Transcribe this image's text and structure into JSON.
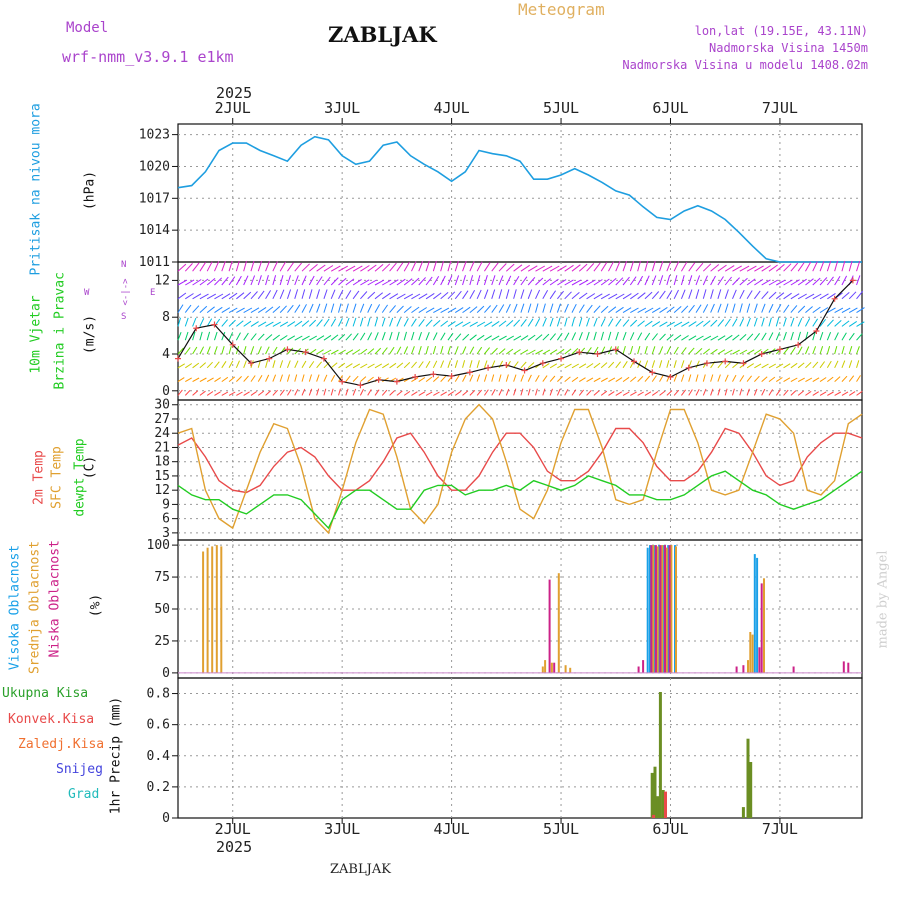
{
  "header": {
    "model_label": "Model",
    "model_name": "wrf-nmm_v3.9.1 e1km",
    "station": "ZABLJAK",
    "meteogram": "Meteogram",
    "location": "lon,lat (19.15E, 43.11N)",
    "altitude": "Nadmorska Visina 1450m",
    "model_altitude": "Nadmorska Visina u modelu 1408.02m",
    "year_top": "2025",
    "year_bottom": "2025",
    "footer_station": "ZABLJAK",
    "credit": "made by Angel"
  },
  "colors": {
    "pressure": "#1e9ee0",
    "temp2m": "#e84a4a",
    "sfc": "#e0a030",
    "dewpt": "#22cc22",
    "high_cloud": "#18a0e8",
    "mid_cloud": "#e0a030",
    "low_cloud": "#cc2288",
    "total_precip": "#2aa02a",
    "conv_precip": "#e84a4a",
    "frozen": "#f07030",
    "snow": "#4444dd",
    "hail": "#22bbbb",
    "precip_bar": "#6b8e23",
    "wind_title": "#22cc22",
    "compass": "#aa44cc",
    "header_purple": "#aa44cc",
    "header_orange": "#e0b060"
  },
  "panels": {
    "pressure": {
      "label": "Pritisak na nivou mora",
      "unit": "(hPa)",
      "ticks": [
        "1023",
        "1020",
        "1017",
        "1014",
        "1011"
      ]
    },
    "wind": {
      "label1": "10m Vjetar",
      "label2": "Brzina i Pravac",
      "unit": "(m/s)",
      "ticks": [
        "12",
        "8",
        "4",
        "0"
      ],
      "compass_w": "W",
      "compass_e": "E",
      "compass_n": "N",
      "compass_s": "S",
      "compass_arrow": "<-|->"
    },
    "temperature": {
      "label1": "2m Temp",
      "label2": "SFC Temp",
      "label3": "dewpt Temp",
      "unit": "(C)",
      "ticks": [
        "30",
        "27",
        "24",
        "21",
        "18",
        "15",
        "12",
        "9",
        "6",
        "3"
      ]
    },
    "clouds": {
      "label1": "Visoka Oblacnost",
      "label2": "Srednja Oblacnost",
      "label3": "Niska Oblacnost",
      "unit": "(%)",
      "ticks": [
        "100",
        "75",
        "50",
        "25",
        "0"
      ]
    },
    "precip": {
      "legend": [
        "Ukupna Kisa",
        "Konvek.Kisa",
        "Zaledj.Kisa",
        "Snijeg",
        "Grad"
      ],
      "unit": "1hr Precip (mm)",
      "ticks": [
        "0.8",
        "0.6",
        "0.4",
        "0.2",
        "0"
      ]
    }
  },
  "days": [
    "2JUL",
    "3JUL",
    "4JUL",
    "5JUL",
    "6JUL",
    "7JUL"
  ],
  "chart_data": [
    {
      "type": "line",
      "title": "Pritisak na nivou mora",
      "ylabel": "(hPa)",
      "ylim": [
        1011,
        1024
      ],
      "x_unit": "hours from 1 JUL 12UTC",
      "series": [
        {
          "name": "Pritisak na nivou mora",
          "x": [
            0,
            3,
            6,
            9,
            12,
            15,
            18,
            21,
            24,
            27,
            30,
            33,
            36,
            39,
            42,
            45,
            48,
            51,
            54,
            57,
            60,
            63,
            66,
            69,
            72,
            75,
            78,
            81,
            84,
            87,
            90,
            93,
            96,
            99,
            102,
            105,
            108,
            111,
            114,
            117,
            120,
            123,
            126,
            129,
            132,
            135,
            138,
            141,
            144,
            147,
            150
          ],
          "values": [
            1018.0,
            1018.2,
            1019.5,
            1021.5,
            1022.2,
            1022.2,
            1021.5,
            1021.0,
            1020.5,
            1022.0,
            1022.8,
            1022.5,
            1021.0,
            1020.2,
            1020.5,
            1022.0,
            1022.3,
            1021.0,
            1020.2,
            1019.5,
            1018.6,
            1019.5,
            1021.5,
            1021.2,
            1021.0,
            1020.5,
            1018.8,
            1018.8,
            1019.2,
            1019.8,
            1019.2,
            1018.5,
            1017.7,
            1017.3,
            1016.2,
            1015.2,
            1015.0,
            1015.8,
            1016.3,
            1015.8,
            1015.0,
            1013.8,
            1012.5,
            1011.3,
            1011.0,
            1011.0,
            1011.0,
            1011.0,
            1011.0,
            1011.0,
            1011.0
          ]
        }
      ]
    },
    {
      "type": "line",
      "title": "10m Vjetar Brzina i Pravac",
      "ylabel": "(m/s)",
      "ylim": [
        -1,
        14
      ],
      "series": [
        {
          "name": "10m Vjetar",
          "x": [
            0,
            4,
            8,
            12,
            16,
            20,
            24,
            28,
            32,
            36,
            40,
            44,
            48,
            52,
            56,
            60,
            64,
            68,
            72,
            76,
            80,
            84,
            88,
            92,
            96,
            100,
            104,
            108,
            112,
            116,
            120,
            124,
            128,
            132,
            136,
            140,
            144,
            148
          ],
          "values": [
            3.5,
            6.8,
            7.2,
            5.0,
            3.0,
            3.5,
            4.5,
            4.2,
            3.5,
            1.0,
            0.6,
            1.2,
            1.0,
            1.5,
            1.8,
            1.6,
            2.0,
            2.5,
            2.8,
            2.2,
            3.0,
            3.5,
            4.2,
            4.0,
            4.5,
            3.2,
            2.0,
            1.5,
            2.5,
            3.0,
            3.2,
            3.0,
            4.0,
            4.5,
            5.0,
            6.5,
            10.0,
            12.0
          ]
        }
      ]
    },
    {
      "type": "line",
      "title": "2m Temp / SFC Temp / dewpt Temp",
      "ylabel": "(C)",
      "ylim": [
        1.5,
        31
      ],
      "series": [
        {
          "name": "2m Temp",
          "x": [
            0,
            3,
            6,
            9,
            12,
            15,
            18,
            21,
            24,
            27,
            30,
            33,
            36,
            39,
            42,
            45,
            48,
            51,
            54,
            57,
            60,
            63,
            66,
            69,
            72,
            75,
            78,
            81,
            84,
            87,
            90,
            93,
            96,
            99,
            102,
            105,
            108,
            111,
            114,
            117,
            120,
            123,
            126,
            129,
            132,
            135,
            138,
            141,
            144,
            147,
            150
          ],
          "values": [
            21.5,
            23,
            19,
            14,
            12,
            11.5,
            13,
            17,
            20,
            21,
            19,
            15,
            12,
            12,
            14,
            18,
            23,
            24,
            20,
            15,
            12,
            12,
            15,
            20,
            24,
            24,
            21,
            16,
            14,
            14,
            16,
            20,
            25,
            25,
            22,
            17,
            14,
            14,
            16,
            20,
            25,
            24,
            20,
            15,
            13,
            14,
            19,
            22,
            24,
            24,
            23
          ]
        },
        {
          "name": "SFC Temp",
          "x": [
            0,
            3,
            6,
            9,
            12,
            15,
            18,
            21,
            24,
            27,
            30,
            33,
            36,
            39,
            42,
            45,
            48,
            51,
            54,
            57,
            60,
            63,
            66,
            69,
            72,
            75,
            78,
            81,
            84,
            87,
            90,
            93,
            96,
            99,
            102,
            105,
            108,
            111,
            114,
            117,
            120,
            123,
            126,
            129,
            132,
            135,
            138,
            141,
            144,
            147,
            150
          ],
          "values": [
            24,
            25,
            12,
            6,
            4,
            12,
            20,
            26,
            25,
            17,
            6,
            3,
            12,
            22,
            29,
            28,
            19,
            8,
            5,
            9,
            20,
            27,
            30,
            27,
            18,
            8,
            6,
            12,
            22,
            29,
            29,
            21,
            10,
            9,
            10,
            20,
            29,
            29,
            22,
            12,
            11,
            12,
            20,
            28,
            27,
            24,
            12,
            11,
            14,
            26,
            28
          ]
        },
        {
          "name": "dewpt Temp",
          "x": [
            0,
            3,
            6,
            9,
            12,
            15,
            18,
            21,
            24,
            27,
            30,
            33,
            36,
            39,
            42,
            45,
            48,
            51,
            54,
            57,
            60,
            63,
            66,
            69,
            72,
            75,
            78,
            81,
            84,
            87,
            90,
            93,
            96,
            99,
            102,
            105,
            108,
            111,
            114,
            117,
            120,
            123,
            126,
            129,
            132,
            135,
            138,
            141,
            144,
            147,
            150
          ],
          "values": [
            13,
            11,
            10,
            10,
            8,
            7,
            9,
            11,
            11,
            10,
            7,
            4,
            10,
            12,
            12,
            10,
            8,
            8,
            12,
            13,
            13,
            11,
            12,
            12,
            13,
            12,
            14,
            13,
            12,
            13,
            15,
            14,
            13,
            11,
            11,
            10,
            10,
            11,
            13,
            15,
            16,
            14,
            12,
            11,
            9,
            8,
            9,
            10,
            12,
            14,
            16
          ]
        }
      ]
    },
    {
      "type": "bar",
      "title": "Visoka / Srednja / Niska Oblacnost",
      "ylabel": "(%)",
      "ylim": [
        0,
        100
      ],
      "series": [
        {
          "name": "Visoka Oblacnost",
          "x": [
            103,
            103.5,
            104,
            104.5,
            105,
            105.5,
            106,
            106.5,
            107,
            107.5,
            108,
            109,
            126.5,
            127
          ],
          "values": [
            98,
            100,
            99,
            100,
            97,
            100,
            99,
            100,
            98,
            100,
            99,
            100,
            93,
            90
          ]
        },
        {
          "name": "Srednja Oblacnost",
          "x": [
            5.5,
            6.5,
            7.5,
            8.5,
            9.5,
            80,
            80.5,
            82,
            83.5,
            85,
            86,
            104.2,
            105.2,
            106.2,
            107.2,
            108.2,
            109.2,
            125,
            125.5,
            126,
            128.5
          ],
          "values": [
            95,
            98,
            99,
            100,
            99,
            5,
            10,
            8,
            78,
            6,
            4,
            100,
            99,
            100,
            98,
            100,
            99,
            10,
            32,
            30,
            74
          ]
        },
        {
          "name": "Niska Oblacnost",
          "x": [
            81.5,
            82.5,
            101,
            102,
            103.8,
            104.8,
            105.8,
            106.8,
            107.8,
            122.5,
            124,
            127.5,
            128,
            135,
            146,
            147
          ],
          "values": [
            73,
            8,
            5,
            10,
            100,
            100,
            100,
            100,
            100,
            5,
            6,
            20,
            70,
            5,
            9,
            8
          ]
        }
      ]
    },
    {
      "type": "bar",
      "title": "1hr Precip",
      "ylabel": "1hr Precip (mm)",
      "ylim": [
        0,
        0.9
      ],
      "series": [
        {
          "name": "Ukupna Kisa",
          "x": [
            104,
            104.6,
            105.2,
            105.8,
            106.4,
            107.1,
            124,
            125,
            125.6,
            126.2
          ],
          "values": [
            0.29,
            0.33,
            0.14,
            0.81,
            0.18,
            0.0,
            0.07,
            0.51,
            0.36,
            0.0
          ]
        },
        {
          "name": "Konvek.Kisa",
          "x": [
            104.3,
            106.9
          ],
          "values": [
            0.02,
            0.17
          ]
        }
      ]
    }
  ]
}
